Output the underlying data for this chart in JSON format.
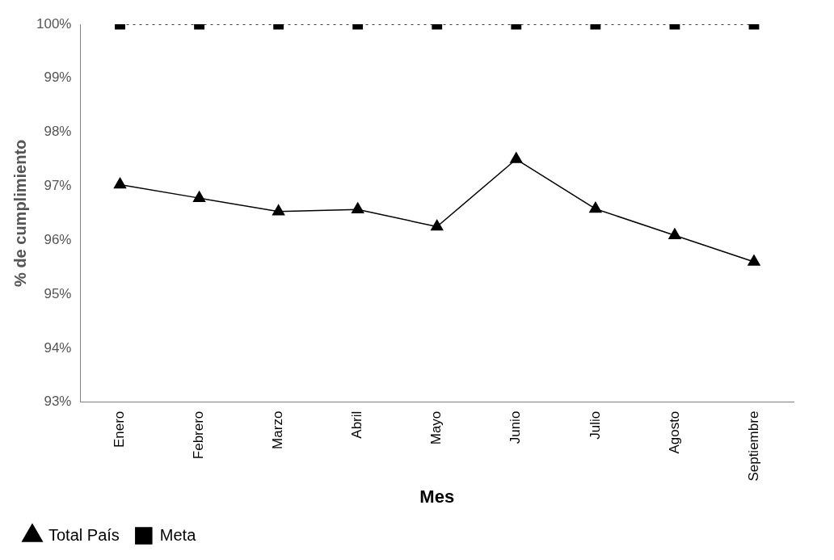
{
  "chart_data": {
    "type": "line",
    "xlabel": "Mes",
    "ylabel": "% de cumplimiento",
    "categories": [
      "Enero",
      "Febrero",
      "Marzo",
      "Abril",
      "Mayo",
      "Junio",
      "Julio",
      "Agosto",
      "Septiembre"
    ],
    "series": [
      {
        "name": "Total País",
        "color": "#000000",
        "marker": "triangle",
        "line_style": "solid",
        "values": [
          97.03,
          96.78,
          96.53,
          96.57,
          96.25,
          97.5,
          96.58,
          96.09,
          95.6
        ]
      },
      {
        "name": "Meta",
        "color": "#000000",
        "marker": "square",
        "line_style": "dotted",
        "values": [
          100,
          100,
          100,
          100,
          100,
          100,
          100,
          100,
          100
        ]
      }
    ],
    "ylim": [
      93,
      100
    ],
    "yticks": [
      {
        "value": 93,
        "label": "93%"
      },
      {
        "value": 94,
        "label": "94%"
      },
      {
        "value": 95,
        "label": "95%"
      },
      {
        "value": 96,
        "label": "96%"
      },
      {
        "value": 97,
        "label": "97%"
      },
      {
        "value": 98,
        "label": "98%"
      },
      {
        "value": 99,
        "label": "99%"
      },
      {
        "value": 100,
        "label": "100%"
      }
    ],
    "grid": false,
    "legend": "bottom left"
  }
}
